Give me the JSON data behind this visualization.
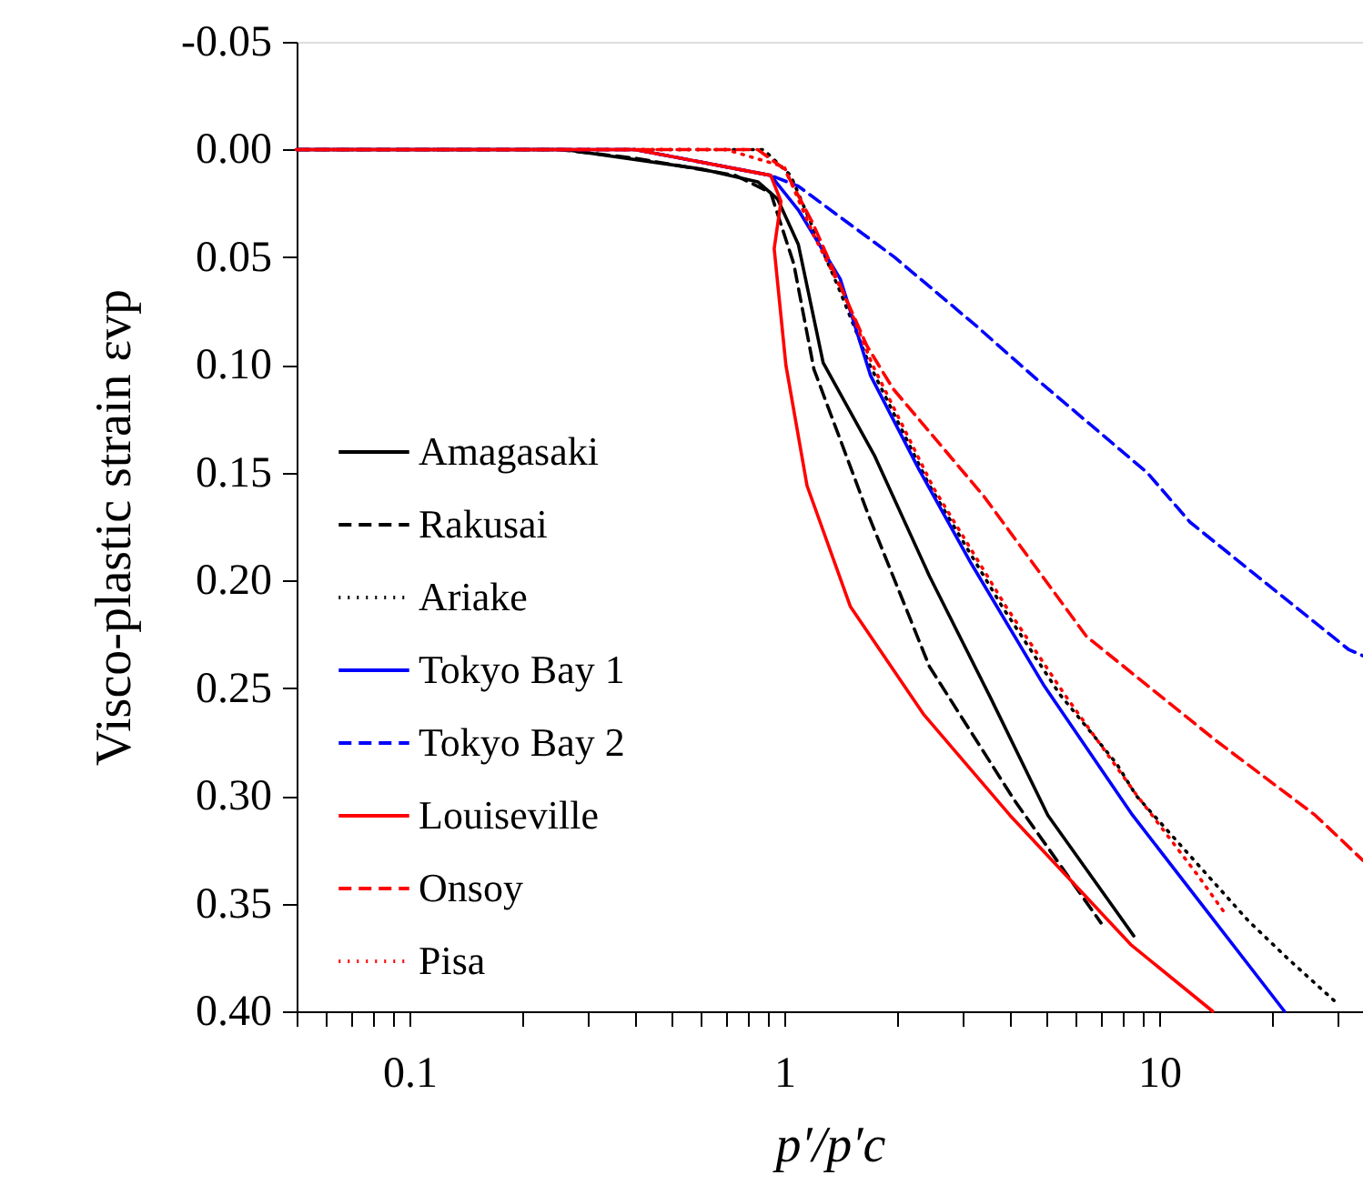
{
  "chart_data": {
    "type": "line",
    "xlabel": "p′/p′c",
    "ylabel": "Visco-plastic strain εvp",
    "log": "x",
    "xlim": [
      0.05,
      35
    ],
    "ylim": [
      0.4,
      -0.05
    ],
    "xticks": [
      {
        "value": 0.05,
        "label": null
      },
      {
        "value": 0.06,
        "label": null
      },
      {
        "value": 0.07,
        "label": null
      },
      {
        "value": 0.08,
        "label": null
      },
      {
        "value": 0.09,
        "label": null
      },
      {
        "value": 0.1,
        "label": "0.1"
      },
      {
        "value": 0.2,
        "label": null
      },
      {
        "value": 0.3,
        "label": null
      },
      {
        "value": 0.4,
        "label": null
      },
      {
        "value": 0.5,
        "label": null
      },
      {
        "value": 0.6,
        "label": null
      },
      {
        "value": 0.7,
        "label": null
      },
      {
        "value": 0.8,
        "label": null
      },
      {
        "value": 0.9,
        "label": null
      },
      1,
      {
        "value": 2,
        "label": null
      },
      {
        "value": 3,
        "label": null
      },
      {
        "value": 4,
        "label": null
      },
      {
        "value": 5,
        "label": null
      },
      {
        "value": 6,
        "label": null
      },
      {
        "value": 7,
        "label": null
      },
      {
        "value": 8,
        "label": null
      },
      {
        "value": 9,
        "label": null
      },
      10,
      {
        "value": 20,
        "label": null
      },
      {
        "value": 30,
        "label": null
      }
    ],
    "yticks": [
      {
        "value": -0.05,
        "label": "-0.05"
      },
      {
        "value": 0,
        "label": "0.00"
      },
      {
        "value": 0.05,
        "label": "0.05"
      },
      {
        "value": 0.1,
        "label": "0.10"
      },
      {
        "value": 0.15,
        "label": "0.15"
      },
      {
        "value": 0.2,
        "label": "0.20"
      },
      {
        "value": 0.25,
        "label": "0.25"
      },
      {
        "value": 0.3,
        "label": "0.30"
      },
      {
        "value": 0.35,
        "label": "0.35"
      },
      {
        "value": 0.4,
        "label": "0.40"
      }
    ],
    "grid": false,
    "legend": "bottom left",
    "marker": "none",
    "series": [
      {
        "name": "Amagasaki",
        "color": "#000000",
        "line_style": "solid",
        "x": [
          0.05,
          0.26,
          0.6,
          0.85,
          0.96,
          1.09,
          1.27,
          1.74,
          2.44,
          3.54,
          5.05,
          8.56
        ],
        "values": [
          0,
          0,
          0.009,
          0.015,
          0.023,
          0.044,
          0.099,
          0.142,
          0.198,
          0.254,
          0.309,
          0.365
        ]
      },
      {
        "name": "Rakusai",
        "color": "#000000",
        "line_style": "dashed",
        "x": [
          0.05,
          0.25,
          0.4,
          0.74,
          0.92,
          1.06,
          1.2,
          1.68,
          2.44,
          4.11,
          7.0
        ],
        "values": [
          0,
          0,
          0.004,
          0.012,
          0.02,
          0.053,
          0.102,
          0.17,
          0.24,
          0.302,
          0.359
        ]
      },
      {
        "name": "Ariake",
        "color": "#000000",
        "line_style": "dotted",
        "x": [
          0.05,
          0.88,
          1.04,
          1.41,
          1.68,
          2.44,
          3.81,
          5.44,
          7.7,
          8.7,
          17.3,
          22.2,
          29.3
        ],
        "values": [
          0,
          0,
          0.012,
          0.066,
          0.099,
          0.156,
          0.212,
          0.253,
          0.285,
          0.3,
          0.358,
          0.376,
          0.395
        ]
      },
      {
        "name": "Tokyo Bay 1",
        "color": "#0000ff",
        "line_style": "solid",
        "x": [
          0.05,
          0.4,
          0.92,
          1.09,
          1.41,
          1.7,
          2.28,
          3.15,
          4.94,
          8.5,
          21.6
        ],
        "values": [
          0,
          0,
          0.012,
          0.028,
          0.06,
          0.105,
          0.148,
          0.192,
          0.249,
          0.309,
          0.4
        ]
      },
      {
        "name": "Tokyo Bay 2",
        "color": "#0000ff",
        "line_style": "dashed",
        "x": [
          0.05,
          0.4,
          0.92,
          1.09,
          1.97,
          3.26,
          4.6,
          9.3,
          12.1,
          32,
          35
        ],
        "values": [
          0,
          0,
          0.012,
          0.017,
          0.05,
          0.082,
          0.105,
          0.15,
          0.173,
          0.232,
          0.235
        ]
      },
      {
        "name": "Louiseville",
        "color": "#ff0000",
        "line_style": "solid",
        "x": [
          0.05,
          0.4,
          0.92,
          0.98,
          0.94,
          1.01,
          1.15,
          1.5,
          2.35,
          4.0,
          8.4,
          13.9
        ],
        "values": [
          0,
          0,
          0.012,
          0.024,
          0.046,
          0.1,
          0.156,
          0.212,
          0.262,
          0.309,
          0.369,
          0.4
        ]
      },
      {
        "name": "Onsoy",
        "color": "#ff0000",
        "line_style": "dashed",
        "x": [
          0.05,
          0.85,
          1.0,
          1.19,
          1.66,
          1.95,
          3.41,
          6.4,
          14.1,
          26.1,
          35
        ],
        "values": [
          0,
          0,
          0.009,
          0.034,
          0.091,
          0.111,
          0.161,
          0.226,
          0.274,
          0.309,
          0.33
        ]
      },
      {
        "name": "Pisa",
        "color": "#ff0000",
        "line_style": "dotted",
        "x": [
          0.05,
          0.7,
          1.0,
          1.2,
          1.45,
          1.72,
          2.5,
          3.9,
          5.6,
          8.66,
          12.7,
          15.2
        ],
        "values": [
          0,
          0,
          0.008,
          0.04,
          0.068,
          0.1,
          0.157,
          0.212,
          0.253,
          0.299,
          0.337,
          0.356
        ]
      }
    ]
  }
}
